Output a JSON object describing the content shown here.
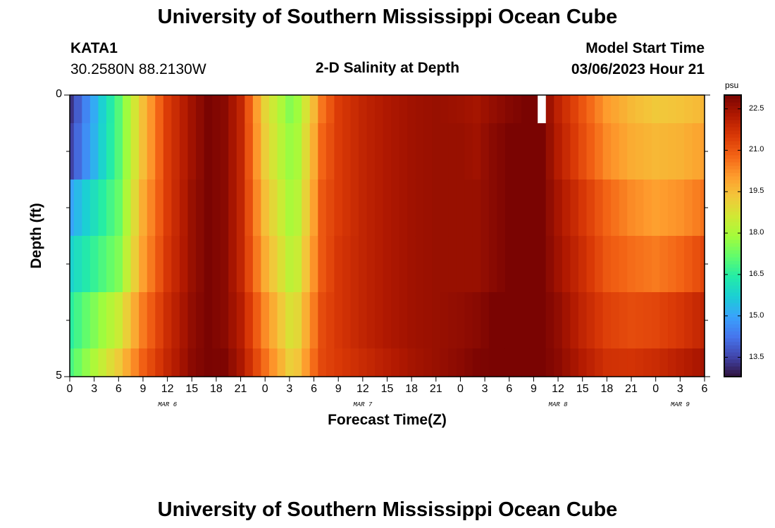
{
  "page": {
    "title_top": "University of Southern Mississippi Ocean Cube",
    "title_bottom": "University of Southern Mississippi Ocean Cube",
    "station_id": "KATA1",
    "station_coords": "30.2580N  88.2130W",
    "chart_title": "2-D Salinity at Depth",
    "model_start_label": "Model Start Time",
    "model_start_value": "03/06/2023 Hour 21"
  },
  "colors": {
    "colormap": [
      "#30123b",
      "#4145ab",
      "#4675ed",
      "#39a2fc",
      "#1bcfd4",
      "#24eca6",
      "#61fc6c",
      "#a4fc3b",
      "#d1e834",
      "#f3c63a",
      "#fe9b2d",
      "#f36315",
      "#d93806",
      "#b11901",
      "#7a0402"
    ],
    "missing": "#ffffff"
  },
  "chart_data": {
    "type": "heatmap",
    "title": "2-D Salinity at Depth",
    "xlabel": "Forecast Time(Z)",
    "ylabel": "Depth (ft)",
    "colorbar_label": "psu",
    "x_ticks": [
      "0",
      "3",
      "6",
      "9",
      "12",
      "15",
      "18",
      "21",
      "0",
      "3",
      "6",
      "9",
      "12",
      "15",
      "18",
      "21",
      "0",
      "3",
      "6",
      "9",
      "12",
      "15",
      "18",
      "21",
      "0",
      "3",
      "6"
    ],
    "x_tick_hours": [
      0,
      3,
      6,
      9,
      12,
      15,
      18,
      21,
      24,
      27,
      30,
      33,
      36,
      39,
      42,
      45,
      48,
      51,
      54,
      57,
      60,
      63,
      66,
      69,
      72,
      75,
      78
    ],
    "day_labels": [
      {
        "label": "MAR 6",
        "hour": 12
      },
      {
        "label": "MAR 7",
        "hour": 36
      },
      {
        "label": "MAR 8",
        "hour": 60
      },
      {
        "label": "MAR 9",
        "hour": 75
      }
    ],
    "y_tick_labels": [
      {
        "label": "0",
        "depth": 0
      },
      {
        "label": "5",
        "depth": 5
      }
    ],
    "y_minor_depths": [
      1,
      2,
      3,
      4
    ],
    "xlim": [
      0,
      78
    ],
    "ylim": [
      0,
      5
    ],
    "depths": [
      0.5,
      1.5,
      2.5,
      3.5,
      4.5
    ],
    "depth_edges": [
      0,
      0.5,
      1.5,
      2.5,
      3.5,
      4.5,
      5
    ],
    "colorbar_ticks": [
      "13.5",
      "15.0",
      "16.5",
      "18.0",
      "19.5",
      "21.0",
      "22.5"
    ],
    "colorbar_tick_values": [
      13.5,
      15.0,
      16.5,
      18.0,
      19.5,
      21.0,
      22.5
    ],
    "colorbar_range": [
      12.8,
      23.0
    ],
    "time_hours": [
      0,
      6,
      9,
      12,
      15,
      17,
      19,
      21,
      24,
      26,
      27,
      28,
      30,
      31,
      33,
      36,
      39,
      42,
      45,
      48,
      50,
      52,
      54,
      56,
      57,
      58,
      60,
      63,
      66,
      69,
      72,
      75,
      78
    ],
    "salinity_keyframes": [
      {
        "depth": 0.0,
        "values": [
          13.2,
          17.0,
          19.5,
          21.5,
          22.5,
          23.0,
          22.8,
          22.0,
          19.0,
          18.0,
          17.5,
          17.8,
          19.5,
          20.5,
          21.5,
          22.0,
          22.3,
          22.5,
          22.6,
          22.5,
          22.4,
          22.6,
          22.8,
          23.0,
          23.0,
          23.0,
          22.0,
          21.0,
          20.0,
          19.5,
          19.2,
          19.3,
          19.5
        ]
      },
      {
        "depth": 1.0,
        "values": [
          13.5,
          17.0,
          19.5,
          21.5,
          22.5,
          23.0,
          22.8,
          22.0,
          19.2,
          18.2,
          17.8,
          18.0,
          19.8,
          20.8,
          21.5,
          22.0,
          22.3,
          22.5,
          22.6,
          22.6,
          22.5,
          22.8,
          23.0,
          23.0,
          23.0,
          23.0,
          22.2,
          21.2,
          20.3,
          19.8,
          19.6,
          19.7,
          20.0
        ]
      },
      {
        "depth": 2.0,
        "values": [
          15.0,
          17.2,
          19.8,
          21.5,
          22.6,
          23.0,
          22.8,
          22.0,
          19.5,
          18.5,
          18.0,
          18.2,
          20.0,
          21.0,
          21.5,
          22.0,
          22.3,
          22.5,
          22.6,
          22.6,
          22.6,
          22.8,
          23.0,
          23.0,
          23.0,
          23.0,
          22.4,
          21.6,
          20.8,
          20.3,
          20.0,
          20.2,
          20.6
        ]
      },
      {
        "depth": 3.0,
        "values": [
          15.8,
          17.5,
          20.0,
          21.6,
          22.6,
          23.0,
          22.8,
          22.0,
          19.8,
          18.8,
          18.3,
          18.5,
          20.2,
          21.0,
          21.6,
          22.0,
          22.3,
          22.5,
          22.6,
          22.6,
          22.6,
          22.8,
          23.0,
          23.0,
          23.0,
          23.0,
          22.5,
          21.8,
          21.0,
          20.7,
          20.5,
          20.8,
          21.3
        ]
      },
      {
        "depth": 4.0,
        "values": [
          16.5,
          18.5,
          20.5,
          21.8,
          22.7,
          23.0,
          22.8,
          22.2,
          20.3,
          19.3,
          18.8,
          19.0,
          20.5,
          21.2,
          21.6,
          22.0,
          22.3,
          22.5,
          22.6,
          22.7,
          22.8,
          23.0,
          23.0,
          23.0,
          23.0,
          23.0,
          22.7,
          22.0,
          21.4,
          21.2,
          21.3,
          21.6,
          22.0
        ]
      },
      {
        "depth": 5.0,
        "values": [
          17.0,
          19.5,
          21.0,
          22.0,
          22.8,
          23.0,
          23.0,
          22.4,
          20.8,
          19.8,
          19.3,
          19.5,
          20.8,
          21.3,
          21.5,
          21.8,
          22.1,
          22.4,
          22.6,
          22.8,
          23.0,
          23.0,
          23.0,
          23.0,
          23.0,
          23.0,
          22.8,
          22.3,
          21.8,
          21.8,
          22.0,
          22.3,
          22.6
        ]
      }
    ],
    "missing_cells": [
      {
        "hour": 58,
        "depth_bin": 0
      }
    ]
  }
}
